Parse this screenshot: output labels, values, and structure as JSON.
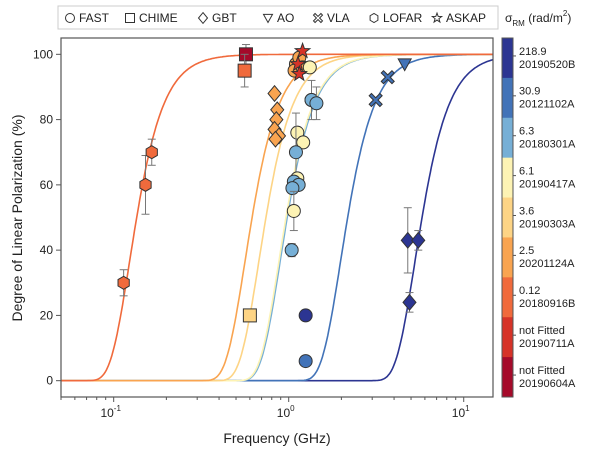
{
  "chart_data": {
    "type": "scatter",
    "xlabel": "Frequency (GHz)",
    "ylabel": "Degree of Linear Polarization (%)",
    "xscale": "log",
    "xlim": [
      0.05,
      14.7
    ],
    "ylim": [
      -5,
      105
    ],
    "yticks": [
      0,
      20,
      40,
      60,
      80,
      100
    ],
    "xticks": [
      {
        "v": 0.1,
        "label": "10",
        "exp": "-1"
      },
      {
        "v": 1,
        "label": "10",
        "exp": "0"
      },
      {
        "v": 10,
        "label": "10",
        "exp": "1"
      }
    ],
    "model": "P = 100*exp(-2 sigma_RM^2 lambda^4)",
    "legend": {
      "placement": "top",
      "items": [
        {
          "marker": "circle",
          "label": "FAST"
        },
        {
          "marker": "square",
          "label": "CHIME"
        },
        {
          "marker": "diamond",
          "label": "GBT"
        },
        {
          "marker": "triangle-down",
          "label": "AO"
        },
        {
          "marker": "cross",
          "label": "VLA"
        },
        {
          "marker": "hexagon",
          "label": "LOFAR"
        },
        {
          "marker": "star",
          "label": "ASKAP"
        }
      ]
    },
    "colorbar": {
      "title": "σ",
      "sub": "RM",
      "unit": " (rad/m",
      "sup": "2",
      "close": ")",
      "entries": [
        {
          "sigma": "218.9",
          "burst": "20190520B",
          "sigma_value": 218.9,
          "color": "#2c3592"
        },
        {
          "sigma": "30.9",
          "burst": "20121102A",
          "sigma_value": 30.9,
          "color": "#4273b8"
        },
        {
          "sigma": "6.3",
          "burst": "20180301A",
          "sigma_value": 6.3,
          "color": "#76afd6"
        },
        {
          "sigma": "6.1",
          "burst": "20190417A",
          "sigma_value": 6.1,
          "color": "#fdf3b4"
        },
        {
          "sigma": "3.6",
          "burst": "20190303A",
          "sigma_value": 3.6,
          "color": "#fdd485"
        },
        {
          "sigma": "2.5",
          "burst": "20201124A",
          "sigma_value": 2.5,
          "color": "#f9a450"
        },
        {
          "sigma": "0.12",
          "burst": "20180916B",
          "sigma_value": 0.12,
          "color": "#f06a3c"
        },
        {
          "sigma": "not Fitted",
          "burst": "20190711A",
          "sigma_value": null,
          "color": "#d63328"
        },
        {
          "sigma": "not Fitted",
          "burst": "20190604A",
          "sigma_value": null,
          "color": "#a50a2a"
        }
      ]
    },
    "points": [
      {
        "f": 0.114,
        "p": 30,
        "err": 4,
        "m": "hexagon",
        "c": 6
      },
      {
        "f": 0.152,
        "p": 60,
        "err": 9,
        "m": "hexagon",
        "c": 6
      },
      {
        "f": 0.165,
        "p": 70,
        "err": 4,
        "m": "hexagon",
        "c": 6
      },
      {
        "f": 0.57,
        "p": 100,
        "err": 3,
        "m": "square",
        "c": 8
      },
      {
        "f": 0.56,
        "p": 95,
        "err": 5,
        "m": "square",
        "c": 6
      },
      {
        "f": 0.6,
        "p": 20,
        "err": 0,
        "m": "square",
        "c": 4
      },
      {
        "f": 0.83,
        "p": 88,
        "err": 0,
        "m": "diamond",
        "c": 5
      },
      {
        "f": 0.86,
        "p": 83,
        "err": 0,
        "m": "diamond",
        "c": 5
      },
      {
        "f": 0.85,
        "p": 80,
        "err": 0,
        "m": "diamond",
        "c": 5
      },
      {
        "f": 0.83,
        "p": 77,
        "err": 0,
        "m": "diamond",
        "c": 5
      },
      {
        "f": 0.88,
        "p": 75,
        "err": 0,
        "m": "diamond",
        "c": 5
      },
      {
        "f": 0.84,
        "p": 74,
        "err": 0,
        "m": "diamond",
        "c": 5
      },
      {
        "f": 1.1,
        "p": 97,
        "err": 0,
        "m": "circle",
        "c": 5
      },
      {
        "f": 1.15,
        "p": 99,
        "err": 0,
        "m": "circle",
        "c": 5
      },
      {
        "f": 1.08,
        "p": 95,
        "err": 0,
        "m": "circle",
        "c": 5
      },
      {
        "f": 1.2,
        "p": 96,
        "err": 0,
        "m": "circle",
        "c": 5
      },
      {
        "f": 1.32,
        "p": 96,
        "err": 0,
        "m": "circle",
        "c": 3
      },
      {
        "f": 1.35,
        "p": 86,
        "err": 6,
        "m": "circle",
        "c": 3
      },
      {
        "f": 1.35,
        "p": 86,
        "err": 0,
        "m": "circle",
        "c": 2
      },
      {
        "f": 1.44,
        "p": 85,
        "err": 5,
        "m": "circle",
        "c": 2
      },
      {
        "f": 1.12,
        "p": 76,
        "err": 0,
        "m": "circle",
        "c": 3
      },
      {
        "f": 1.21,
        "p": 73,
        "err": 0,
        "m": "circle",
        "c": 3
      },
      {
        "f": 1.1,
        "p": 70,
        "err": 12,
        "m": "circle",
        "c": 2
      },
      {
        "f": 1.12,
        "p": 62,
        "err": 0,
        "m": "circle",
        "c": 3
      },
      {
        "f": 1.07,
        "p": 61,
        "err": 0,
        "m": "circle",
        "c": 2
      },
      {
        "f": 1.14,
        "p": 60,
        "err": 0,
        "m": "circle",
        "c": 2
      },
      {
        "f": 1.05,
        "p": 59,
        "err": 0,
        "m": "circle",
        "c": 2
      },
      {
        "f": 1.07,
        "p": 52,
        "err": 6,
        "m": "circle",
        "c": 3
      },
      {
        "f": 1.04,
        "p": 40,
        "err": 2,
        "m": "circle",
        "c": 2
      },
      {
        "f": 1.25,
        "p": 20,
        "err": 0,
        "m": "circle",
        "c": 0
      },
      {
        "f": 1.25,
        "p": 6,
        "err": 0,
        "m": "circle",
        "c": 1
      },
      {
        "f": 1.2,
        "p": 101,
        "err": 0,
        "m": "star",
        "c": 7
      },
      {
        "f": 1.13,
        "p": 97,
        "err": 0,
        "m": "star",
        "c": 7
      },
      {
        "f": 1.15,
        "p": 94,
        "err": 0,
        "m": "star",
        "c": 7
      },
      {
        "f": 3.14,
        "p": 86,
        "err": 0,
        "m": "cross",
        "c": 1
      },
      {
        "f": 3.68,
        "p": 93,
        "err": 0,
        "m": "cross",
        "c": 1
      },
      {
        "f": 4.6,
        "p": 97,
        "err": 0,
        "m": "triangle-down",
        "c": 1
      },
      {
        "f": 4.79,
        "p": 43,
        "err": 10,
        "m": "diamond",
        "c": 0
      },
      {
        "f": 5.5,
        "p": 43,
        "err": 3,
        "m": "diamond",
        "c": 0
      },
      {
        "f": 4.9,
        "p": 24,
        "err": 3,
        "m": "diamond",
        "c": 0
      }
    ]
  }
}
